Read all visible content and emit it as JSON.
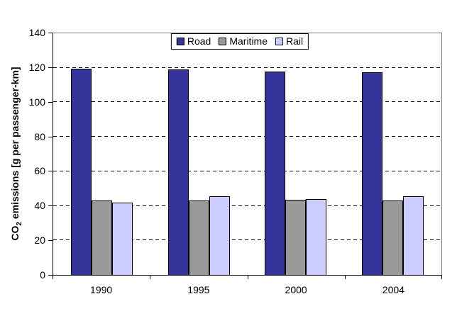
{
  "chart_data": {
    "type": "bar",
    "title": "",
    "categories": [
      "1990",
      "1995",
      "2000",
      "2004"
    ],
    "series": [
      {
        "name": "Road",
        "color": "#333399",
        "values": [
          119.5,
          119,
          118,
          117.5
        ]
      },
      {
        "name": "Maritime",
        "color": "#999999",
        "values": [
          43,
          43,
          43.5,
          43
        ]
      },
      {
        "name": "Rail",
        "color": "#CCCCFF",
        "values": [
          42,
          45.5,
          44,
          45.5
        ]
      }
    ],
    "xlabel": "",
    "ylabel": "CO2 emissions [g per passenger-km]",
    "ylabel_parts": {
      "prefix": "CO",
      "sub": "2",
      "suffix": " emissions [g per passenger-km]"
    },
    "ylim": [
      0,
      140
    ],
    "ytick_step": 20,
    "yticks": [
      0,
      20,
      40,
      60,
      80,
      100,
      120,
      140
    ],
    "grid": "horizontal-dashed",
    "legend_position": "top-center",
    "colors": {
      "plot_border": "#808080",
      "axis": "#000000",
      "gridline": "#000000",
      "legend_border": "#000000",
      "background": "#ffffff",
      "text": "#000000"
    }
  }
}
